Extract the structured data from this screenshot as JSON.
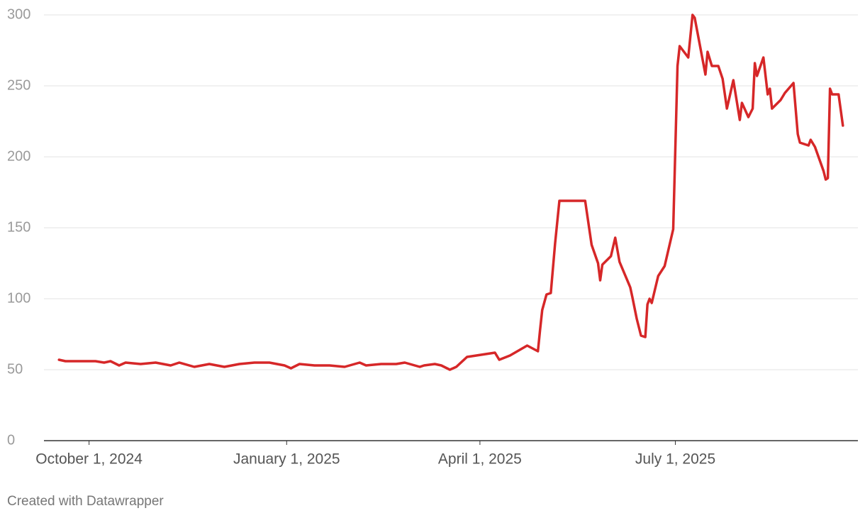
{
  "chart_data": {
    "type": "line",
    "x": [
      "2024-09-17",
      "2024-09-20",
      "2024-09-27",
      "2024-10-04",
      "2024-10-08",
      "2024-10-11",
      "2024-10-15",
      "2024-10-18",
      "2024-10-25",
      "2024-11-01",
      "2024-11-08",
      "2024-11-12",
      "2024-11-19",
      "2024-11-26",
      "2024-12-03",
      "2024-12-10",
      "2024-12-17",
      "2024-12-24",
      "2024-12-31",
      "2025-01-03",
      "2025-01-07",
      "2025-01-14",
      "2025-01-21",
      "2025-01-28",
      "2025-02-04",
      "2025-02-07",
      "2025-02-14",
      "2025-02-21",
      "2025-02-25",
      "2025-03-04",
      "2025-03-06",
      "2025-03-11",
      "2025-03-14",
      "2025-03-18",
      "2025-03-21",
      "2025-03-26",
      "2025-04-08",
      "2025-04-10",
      "2025-04-15",
      "2025-04-23",
      "2025-04-28",
      "2025-04-29",
      "2025-04-30",
      "2025-05-02",
      "2025-05-04",
      "2025-05-06",
      "2025-05-08",
      "2025-05-20",
      "2025-05-23",
      "2025-05-26",
      "2025-05-27",
      "2025-05-28",
      "2025-06-01",
      "2025-06-03",
      "2025-06-05",
      "2025-06-10",
      "2025-06-11",
      "2025-06-13",
      "2025-06-15",
      "2025-06-17",
      "2025-06-18",
      "2025-06-19",
      "2025-06-20",
      "2025-06-23",
      "2025-06-26",
      "2025-06-30",
      "2025-07-02",
      "2025-07-03",
      "2025-07-07",
      "2025-07-09",
      "2025-07-10",
      "2025-07-15",
      "2025-07-16",
      "2025-07-18",
      "2025-07-21",
      "2025-07-23",
      "2025-07-25",
      "2025-07-28",
      "2025-07-31",
      "2025-08-01",
      "2025-08-04",
      "2025-08-06",
      "2025-08-07",
      "2025-08-08",
      "2025-08-11",
      "2025-08-13",
      "2025-08-14",
      "2025-08-15",
      "2025-08-19",
      "2025-08-21",
      "2025-08-25",
      "2025-08-27",
      "2025-08-28",
      "2025-09-01",
      "2025-09-02",
      "2025-09-04",
      "2025-09-08",
      "2025-09-09",
      "2025-09-10",
      "2025-09-11",
      "2025-09-12",
      "2025-09-15",
      "2025-09-17"
    ],
    "values": [
      57,
      56,
      56,
      56,
      55,
      56,
      53,
      55,
      54,
      55,
      53,
      55,
      52,
      54,
      52,
      54,
      55,
      55,
      53,
      51,
      54,
      53,
      53,
      52,
      55,
      53,
      54,
      54,
      55,
      52,
      53,
      54,
      53,
      50,
      52,
      59,
      62,
      57,
      60,
      67,
      63,
      78,
      92,
      103,
      104,
      139,
      169,
      169,
      138,
      125,
      113,
      124,
      130,
      143,
      126,
      108,
      101,
      86,
      74,
      73,
      96,
      100,
      97,
      116,
      123,
      149,
      264,
      278,
      270,
      300,
      298,
      258,
      274,
      264,
      264,
      255,
      234,
      254,
      226,
      238,
      228,
      234,
      266,
      257,
      270,
      244,
      248,
      234,
      240,
      245,
      252,
      216,
      210,
      208,
      212,
      207,
      190,
      184,
      185,
      248,
      244,
      244,
      222
    ],
    "color": "#d62728",
    "xlim": [
      "2024-09-10",
      "2025-09-24"
    ],
    "xticks": [
      {
        "value": "2024-10-01",
        "label": "October 1, 2024"
      },
      {
        "value": "2025-01-01",
        "label": "January 1, 2025"
      },
      {
        "value": "2025-04-01",
        "label": "April 1, 2025"
      },
      {
        "value": "2025-07-01",
        "label": "July 1, 2025"
      }
    ],
    "ylim": [
      0,
      300
    ],
    "yticks": [
      0,
      50,
      100,
      150,
      200,
      250,
      300
    ],
    "grid": true,
    "footer": "Created with Datawrapper"
  }
}
